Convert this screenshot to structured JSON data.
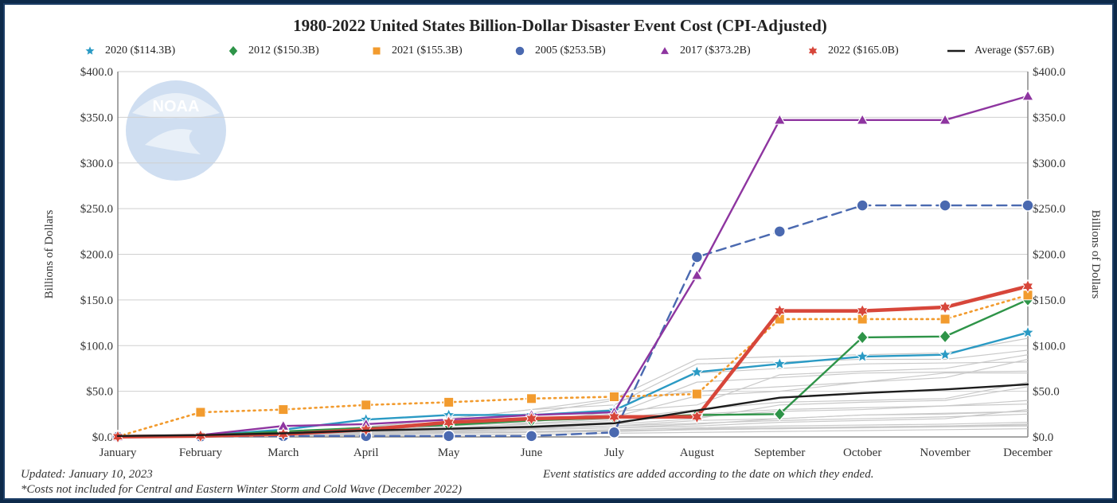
{
  "chart_data": {
    "type": "line",
    "title": "1980-2022 United States Billion-Dollar Disaster Event Cost (CPI-Adjusted)",
    "xlabel": "",
    "ylabel": "Billions of Dollars",
    "ylabel_right": "Billions of Dollars",
    "categories": [
      "January",
      "February",
      "March",
      "April",
      "May",
      "June",
      "July",
      "August",
      "September",
      "October",
      "November",
      "December"
    ],
    "ylim": [
      0,
      400
    ],
    "yticks": [
      0,
      50,
      100,
      150,
      200,
      250,
      300,
      350,
      400
    ],
    "ytick_labels": [
      "$0.0",
      "$50.0",
      "$100.0",
      "$150.0",
      "$200.0",
      "$250.0",
      "$300.0",
      "$350.0",
      "$400.0"
    ],
    "grid": true,
    "legend_position": "top",
    "series": [
      {
        "name": "2020 ($114.3B)",
        "color": "#2a9ac4",
        "marker": "star5",
        "line": "solid",
        "values": [
          0.2,
          1.5,
          8,
          19,
          24,
          24,
          29,
          71,
          80,
          88,
          90,
          114.3
        ]
      },
      {
        "name": "2012 ($150.3B)",
        "color": "#2e9448",
        "marker": "diamond",
        "line": "solid",
        "values": [
          0.2,
          1.5,
          6,
          10,
          13,
          18,
          21,
          24,
          25,
          109,
          110,
          150.3
        ]
      },
      {
        "name": "2021 ($155.3B)",
        "color": "#f29b2e",
        "marker": "square",
        "line": "dotted",
        "values": [
          0.5,
          27,
          30,
          35,
          38,
          42,
          44,
          47,
          129,
          129,
          129,
          155.3
        ]
      },
      {
        "name": "2005 ($253.5B)",
        "color": "#4a69b0",
        "marker": "circle",
        "line": "dashed",
        "values": [
          0.1,
          0.5,
          1,
          1,
          1,
          1,
          5,
          197,
          225,
          253.5,
          253.5,
          253.5
        ]
      },
      {
        "name": "2017 ($373.2B)",
        "color": "#8e35a0",
        "marker": "triangle",
        "line": "solid",
        "values": [
          0.2,
          2,
          12,
          14,
          19,
          24,
          27,
          177,
          347,
          347,
          347,
          373.2
        ]
      },
      {
        "name": "2022 ($165.0B)",
        "color": "#d7463a",
        "marker": "star6",
        "line": "solid-thick",
        "values": [
          0.2,
          1,
          3,
          8,
          16,
          20,
          22,
          22,
          138,
          138,
          142,
          165.0
        ]
      },
      {
        "name": "Average ($57.6B)",
        "color": "#1c1c1c",
        "marker": "none",
        "line": "solid",
        "values": [
          1,
          2,
          4,
          7,
          9,
          11,
          15,
          29,
          43,
          48,
          52,
          57.6
        ]
      }
    ],
    "background_years": [
      [
        0,
        1,
        2,
        3,
        4,
        5,
        6,
        8,
        9,
        11,
        12,
        14
      ],
      [
        0,
        0,
        1,
        2,
        8,
        10,
        12,
        18,
        20,
        24,
        25,
        28
      ],
      [
        1,
        2,
        3,
        5,
        9,
        15,
        20,
        30,
        38,
        40,
        42,
        60
      ],
      [
        0,
        3,
        5,
        9,
        14,
        18,
        22,
        45,
        50,
        60,
        70,
        70
      ],
      [
        1,
        2,
        4,
        6,
        12,
        20,
        25,
        60,
        65,
        70,
        71,
        72
      ],
      [
        2,
        3,
        6,
        10,
        17,
        24,
        30,
        70,
        75,
        80,
        81,
        82
      ],
      [
        1,
        2,
        5,
        11,
        20,
        30,
        35,
        80,
        82,
        85,
        85,
        95
      ],
      [
        0,
        1,
        3,
        7,
        12,
        16,
        28,
        35,
        68,
        72,
        75,
        90
      ],
      [
        1,
        2,
        4,
        8,
        15,
        26,
        40,
        50,
        55,
        60,
        65,
        85
      ],
      [
        0,
        1,
        3,
        10,
        20,
        30,
        42,
        85,
        88,
        90,
        92,
        108
      ],
      [
        0,
        1,
        2,
        4,
        7,
        9,
        12,
        15,
        18,
        20,
        22,
        25
      ],
      [
        0,
        1,
        2,
        3,
        5,
        6,
        8,
        10,
        12,
        13,
        14,
        16
      ],
      [
        0,
        0,
        1,
        2,
        4,
        5,
        6,
        9,
        10,
        11,
        12,
        13
      ],
      [
        1,
        2,
        4,
        7,
        10,
        14,
        18,
        22,
        28,
        30,
        34,
        40
      ],
      [
        0,
        1,
        3,
        5,
        8,
        11,
        14,
        20,
        35,
        38,
        40,
        55
      ],
      [
        0,
        1,
        2,
        3,
        4,
        5,
        7,
        8,
        9,
        10,
        11,
        12
      ],
      [
        1,
        2,
        3,
        5,
        6,
        8,
        10,
        12,
        16,
        18,
        20,
        30
      ],
      [
        0,
        2,
        4,
        6,
        9,
        12,
        16,
        25,
        30,
        32,
        34,
        36
      ],
      [
        0,
        1,
        2,
        4,
        6,
        8,
        10,
        14,
        20,
        24,
        26,
        28
      ],
      [
        0,
        0,
        1,
        1,
        2,
        3,
        4,
        5,
        6,
        7,
        8,
        9
      ]
    ]
  },
  "footnotes": {
    "updated": "Updated: January 10, 2023",
    "costs_note": "*Costs not included for Central and Eastern Winter Storm and Cold Wave (December 2022)",
    "event_note": "Event statistics are added according to the date on which they ended."
  },
  "logo": {
    "text": "NOAA"
  }
}
